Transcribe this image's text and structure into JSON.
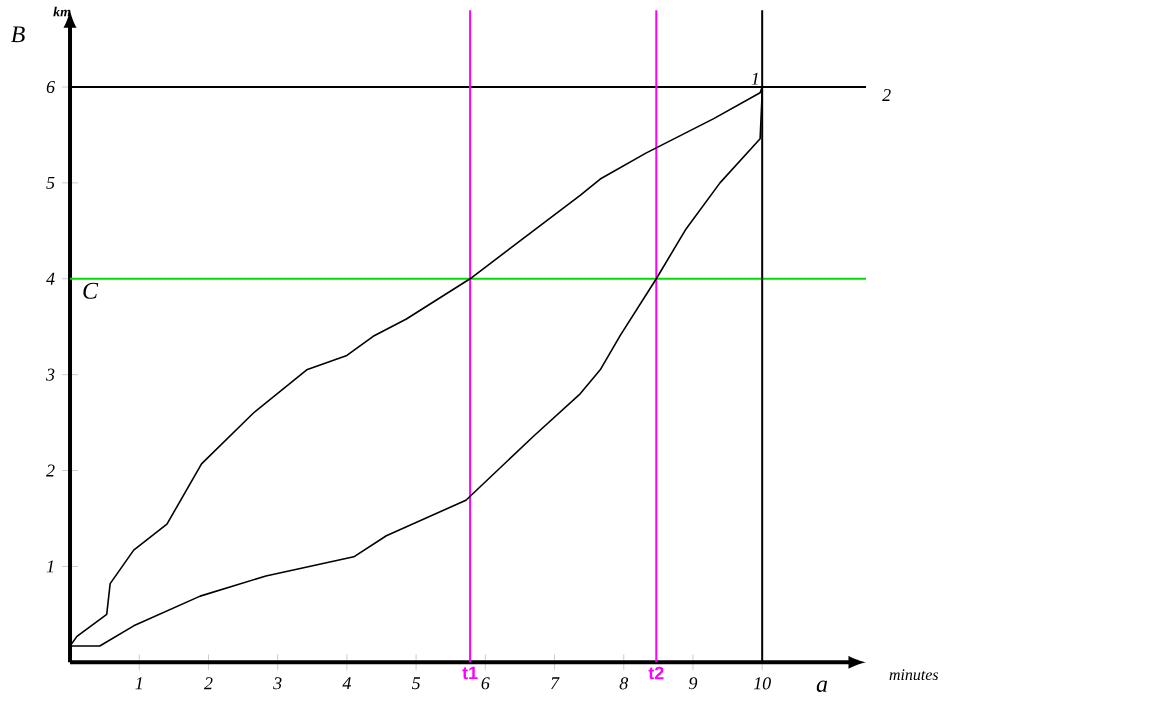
{
  "chart_data": {
    "type": "line",
    "xlabel": "minutes",
    "ylabel": "km",
    "xlim": [
      0,
      11.5
    ],
    "ylim": [
      0,
      6.8
    ],
    "xticks": [
      1,
      2,
      3,
      4,
      5,
      6,
      7,
      8,
      9,
      10
    ],
    "yticks": [
      1,
      2,
      3,
      4,
      5,
      6
    ],
    "marker": "none",
    "line_style": "solid",
    "grid": false,
    "series": [
      {
        "name": "1",
        "color": "#000000",
        "x": [
          0,
          0.43,
          0.92,
          1.88,
          2.83,
          4.1,
          4.57,
          5.72,
          6.7,
          7.37,
          7.66,
          7.95,
          8.47,
          8.9,
          9.39,
          9.97,
          10,
          10
        ],
        "values": [
          0.17,
          0.17,
          0.38,
          0.69,
          0.9,
          1.1,
          1.32,
          1.69,
          2.36,
          2.8,
          3.05,
          3.41,
          4.0,
          4.52,
          5.0,
          5.46,
          5.94,
          6
        ]
      },
      {
        "name": "2",
        "color": "#000000",
        "x": [
          0,
          0.1,
          0.53,
          0.58,
          0.92,
          1.4,
          1.9,
          2.65,
          3.42,
          4.0,
          4.38,
          4.86,
          5.78,
          7.37,
          7.66,
          8.32,
          9.3,
          9.97,
          10,
          10.84,
          11.4
        ],
        "values": [
          0.17,
          0.27,
          0.5,
          0.82,
          1.17,
          1.44,
          2.07,
          2.6,
          3.05,
          3.2,
          3.4,
          3.58,
          4.0,
          4.87,
          5.04,
          5.31,
          5.67,
          5.94,
          6,
          6,
          6
        ]
      }
    ],
    "ref_lines": [
      {
        "axis": "y",
        "value": 6,
        "color": "#000000"
      },
      {
        "axis": "y",
        "value": 4,
        "color": "#00dd00"
      },
      {
        "axis": "x",
        "value": 10,
        "color": "#000000"
      },
      {
        "axis": "x",
        "value": 5.78,
        "label": "t1",
        "color": "#ff00ff"
      },
      {
        "axis": "x",
        "value": 8.47,
        "label": "t2",
        "color": "#ff00ff"
      }
    ],
    "annotations": [
      "B",
      "C",
      "a"
    ]
  }
}
